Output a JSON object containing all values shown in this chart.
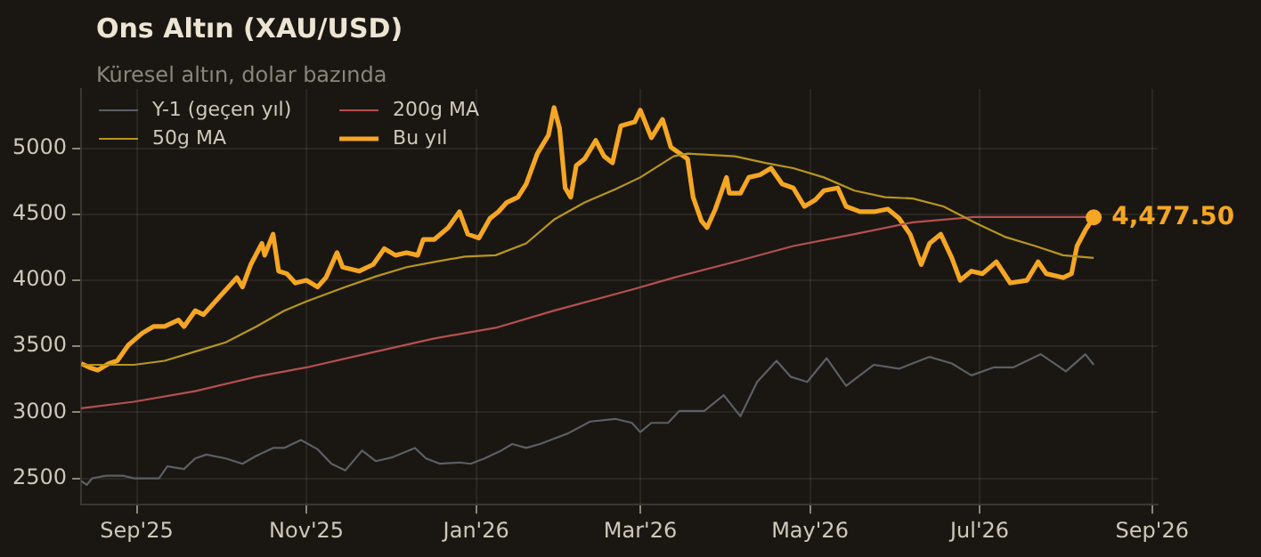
{
  "chart_data": {
    "type": "line",
    "title": "Ons Altın (XAU/USD)",
    "subtitle": "Küresel altın, dolar bazında",
    "xlim": [
      "2025-08-12",
      "2026-09-03"
    ],
    "xticks": [
      {
        "value": "2025-09-01",
        "label": "Sep'25"
      },
      {
        "value": "2025-11-01",
        "label": "Nov'25"
      },
      {
        "value": "2026-01-01",
        "label": "Jan'26"
      },
      {
        "value": "2026-03-01",
        "label": "Mar'26"
      },
      {
        "value": "2026-05-01",
        "label": "May'26"
      },
      {
        "value": "2026-07-01",
        "label": "Jul'26"
      },
      {
        "value": "2026-09-01",
        "label": "Sep'26"
      }
    ],
    "ylim": [
      2300,
      5450
    ],
    "yticks": [
      2500,
      3000,
      3500,
      4000,
      4500,
      5000
    ],
    "grid": true,
    "legend": "top left",
    "marker": "none",
    "line_style": "solid",
    "annotations": [
      {
        "text": "4,477.50",
        "x": "2026-08-11",
        "y": 4477.5
      }
    ],
    "series": [
      {
        "name": "Y-1 (geçen yıl)",
        "color": "#5b5f66",
        "x": [
          "2025-08-12",
          "2025-08-14",
          "2025-08-16",
          "2025-08-21",
          "2025-08-27",
          "2025-08-31",
          "2025-09-09",
          "2025-09-12",
          "2025-09-18",
          "2025-09-22",
          "2025-09-26",
          "2025-10-03",
          "2025-10-09",
          "2025-10-14",
          "2025-10-20",
          "2025-10-24",
          "2025-10-30",
          "2025-11-05",
          "2025-11-10",
          "2025-11-15",
          "2025-11-21",
          "2025-11-26",
          "2025-12-02",
          "2025-12-10",
          "2025-12-14",
          "2025-12-19",
          "2025-12-26",
          "2025-12-30",
          "2026-01-04",
          "2026-01-10",
          "2026-01-14",
          "2026-01-19",
          "2026-01-24",
          "2026-01-29",
          "2026-02-03",
          "2026-02-11",
          "2026-02-20",
          "2026-02-26",
          "2026-03-01",
          "2026-03-05",
          "2026-03-11",
          "2026-03-15",
          "2026-03-24",
          "2026-03-31",
          "2026-04-06",
          "2026-04-12",
          "2026-04-19",
          "2026-04-24",
          "2026-04-30",
          "2026-05-07",
          "2026-05-14",
          "2026-05-24",
          "2026-06-02",
          "2026-06-13",
          "2026-06-21",
          "2026-06-28",
          "2026-07-06",
          "2026-07-13",
          "2026-07-23",
          "2026-08-01",
          "2026-08-08",
          "2026-08-11"
        ],
        "values": [
          2480,
          2450,
          2500,
          2520,
          2520,
          2500,
          2500,
          2590,
          2570,
          2650,
          2680,
          2650,
          2610,
          2670,
          2730,
          2730,
          2790,
          2720,
          2610,
          2560,
          2710,
          2630,
          2660,
          2730,
          2650,
          2610,
          2620,
          2610,
          2650,
          2710,
          2760,
          2730,
          2760,
          2800,
          2840,
          2930,
          2950,
          2920,
          2850,
          2920,
          2920,
          3010,
          3010,
          3130,
          2970,
          3230,
          3390,
          3270,
          3230,
          3410,
          3200,
          3360,
          3330,
          3420,
          3370,
          3280,
          3340,
          3340,
          3440,
          3310,
          3440,
          3360
        ]
      },
      {
        "name": "50g MA",
        "color": "#b8961e",
        "x": [
          "2025-08-12",
          "2025-08-31",
          "2025-09-11",
          "2025-09-22",
          "2025-10-03",
          "2025-10-14",
          "2025-10-24",
          "2025-11-01",
          "2025-11-15",
          "2025-11-26",
          "2025-12-07",
          "2025-12-17",
          "2025-12-28",
          "2026-01-08",
          "2026-01-19",
          "2026-01-29",
          "2026-02-09",
          "2026-02-20",
          "2026-03-01",
          "2026-03-13",
          "2026-03-18",
          "2026-04-04",
          "2026-04-15",
          "2026-04-25",
          "2026-05-06",
          "2026-05-17",
          "2026-05-28",
          "2026-06-07",
          "2026-06-18",
          "2026-06-29",
          "2026-07-10",
          "2026-07-21",
          "2026-07-31",
          "2026-08-11"
        ],
        "values": [
          3360,
          3360,
          3390,
          3460,
          3530,
          3650,
          3770,
          3840,
          3950,
          4030,
          4100,
          4140,
          4180,
          4190,
          4280,
          4460,
          4590,
          4690,
          4780,
          4940,
          4960,
          4940,
          4890,
          4850,
          4780,
          4680,
          4630,
          4620,
          4560,
          4440,
          4330,
          4260,
          4190,
          4170
        ]
      },
      {
        "name": "200g MA",
        "color": "#b5504f",
        "x": [
          "2025-08-12",
          "2025-08-31",
          "2025-09-22",
          "2025-10-14",
          "2025-11-01",
          "2025-11-26",
          "2025-12-17",
          "2026-01-08",
          "2026-01-29",
          "2026-02-26",
          "2026-03-13",
          "2026-04-04",
          "2026-04-25",
          "2026-05-17",
          "2026-06-07",
          "2026-06-29",
          "2026-07-21",
          "2026-08-11"
        ],
        "values": [
          3030,
          3080,
          3160,
          3270,
          3340,
          3460,
          3560,
          3640,
          3770,
          3930,
          4020,
          4140,
          4260,
          4350,
          4440,
          4480,
          4480,
          4480
        ]
      },
      {
        "name": "Bu yıl",
        "color": "#f5a623",
        "x": [
          "2025-08-12",
          "2025-08-15",
          "2025-08-18",
          "2025-08-22",
          "2025-08-25",
          "2025-08-29",
          "2025-09-03",
          "2025-09-07",
          "2025-09-11",
          "2025-09-16",
          "2025-09-18",
          "2025-09-22",
          "2025-09-25",
          "2025-10-01",
          "2025-10-07",
          "2025-10-09",
          "2025-10-12",
          "2025-10-16",
          "2025-10-17",
          "2025-10-20",
          "2025-10-22",
          "2025-10-25",
          "2025-10-28",
          "2025-11-01",
          "2025-11-05",
          "2025-11-08",
          "2025-11-12",
          "2025-11-14",
          "2025-11-20",
          "2025-11-25",
          "2025-11-29",
          "2025-12-03",
          "2025-12-07",
          "2025-12-11",
          "2025-12-13",
          "2025-12-17",
          "2025-12-22",
          "2025-12-26",
          "2025-12-29",
          "2026-01-02",
          "2026-01-06",
          "2026-01-09",
          "2026-01-12",
          "2026-01-16",
          "2026-01-19",
          "2026-01-23",
          "2026-01-27",
          "2026-01-29",
          "2026-01-31",
          "2026-02-02",
          "2026-02-04",
          "2026-02-06",
          "2026-02-09",
          "2026-02-13",
          "2026-02-16",
          "2026-02-19",
          "2026-02-22",
          "2026-02-27",
          "2026-03-01",
          "2026-03-05",
          "2026-03-09",
          "2026-03-12",
          "2026-03-18",
          "2026-03-20",
          "2026-03-23",
          "2026-03-25",
          "2026-03-28",
          "2026-04-01",
          "2026-04-02",
          "2026-04-06",
          "2026-04-09",
          "2026-04-13",
          "2026-04-17",
          "2026-04-21",
          "2026-04-25",
          "2026-04-29",
          "2026-05-03",
          "2026-05-06",
          "2026-05-11",
          "2026-05-14",
          "2026-05-19",
          "2026-05-24",
          "2026-05-29",
          "2026-06-02",
          "2026-06-06",
          "2026-06-10",
          "2026-06-13",
          "2026-06-17",
          "2026-06-21",
          "2026-06-24",
          "2026-06-28",
          "2026-07-02",
          "2026-07-07",
          "2026-07-12",
          "2026-07-18",
          "2026-07-22",
          "2026-07-25",
          "2026-07-31",
          "2026-08-03",
          "2026-08-05",
          "2026-08-08",
          "2026-08-11"
        ],
        "values": [
          3370,
          3340,
          3320,
          3370,
          3390,
          3510,
          3600,
          3650,
          3650,
          3700,
          3650,
          3770,
          3740,
          3880,
          4020,
          3950,
          4120,
          4280,
          4190,
          4350,
          4070,
          4050,
          3980,
          4000,
          3950,
          4020,
          4210,
          4100,
          4070,
          4120,
          4240,
          4190,
          4210,
          4190,
          4310,
          4310,
          4400,
          4520,
          4350,
          4320,
          4470,
          4520,
          4590,
          4630,
          4730,
          4960,
          5100,
          5310,
          5150,
          4700,
          4630,
          4870,
          4920,
          5060,
          4940,
          4890,
          5170,
          5200,
          5290,
          5080,
          5220,
          5010,
          4920,
          4630,
          4450,
          4400,
          4540,
          4780,
          4660,
          4660,
          4780,
          4800,
          4850,
          4730,
          4700,
          4560,
          4610,
          4680,
          4700,
          4560,
          4520,
          4520,
          4540,
          4470,
          4350,
          4120,
          4280,
          4350,
          4170,
          4000,
          4070,
          4050,
          4140,
          3980,
          4000,
          4140,
          4050,
          4020,
          4050,
          4260,
          4380,
          4477.5
        ]
      }
    ]
  }
}
